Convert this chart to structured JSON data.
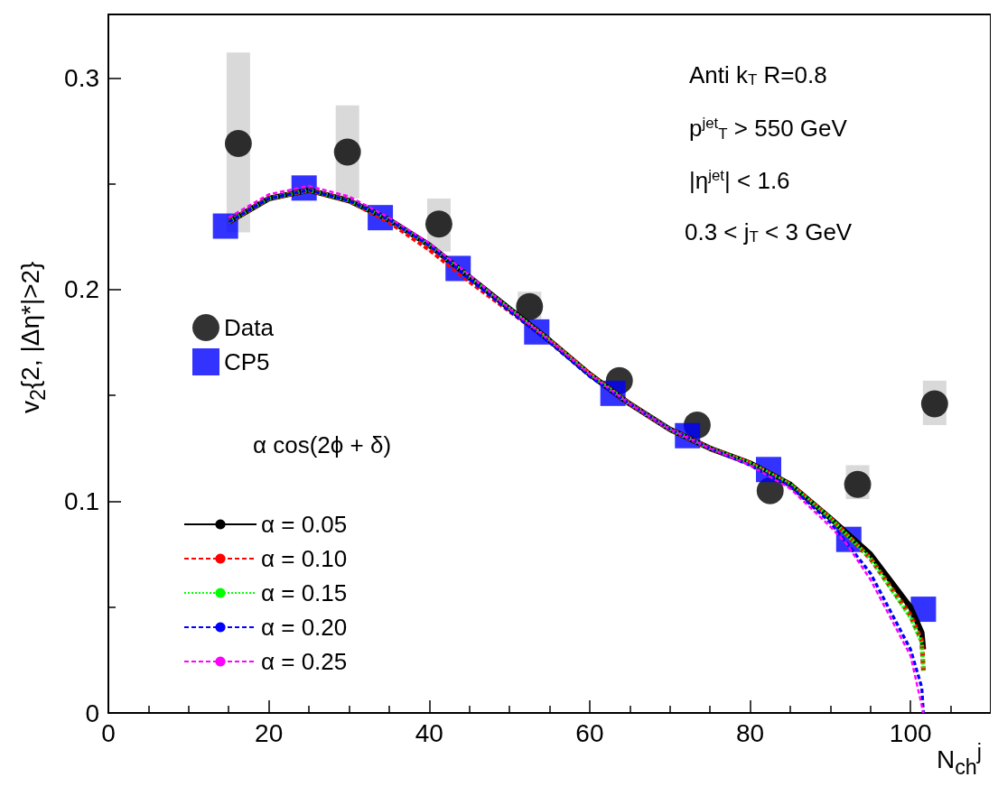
{
  "chart_data": {
    "type": "line",
    "xlabel": "N$_{ch}$$^{j}$",
    "ylabel": "v$_{2}${2, |Δη*|>2}",
    "legend_title": "α cos(2ϕ + δ)",
    "xlim": [
      0,
      110
    ],
    "xticks": [
      0,
      20,
      40,
      60,
      80,
      100
    ],
    "ylim": [
      0,
      0.33
    ],
    "yticks": [
      0,
      0.1,
      0.2,
      0.3
    ],
    "grid": false,
    "legend": "left",
    "annotations": [
      "Anti k$_{T}$ R=0.8",
      "p$^{jet}$$_{T}$ > 550 GeV",
      "|η$^{jet}$| < 1.6",
      "0.3 < j$_{T}$ < 3 GeV"
    ],
    "series": [
      {
        "name": "Data",
        "type": "scatter",
        "marker": "circle",
        "color": "#000000",
        "x": [
          16.2,
          29.8,
          41.2,
          52.5,
          63.7,
          73.4,
          82.5,
          93.4,
          103
        ],
        "values": [
          0.269,
          0.265,
          0.231,
          0.192,
          0.157,
          0.136,
          0.105,
          0.108,
          0.146
        ],
        "errors": [
          [
            0.227,
            0.312
          ],
          [
            0.243,
            0.287
          ],
          [
            0.218,
            0.243
          ],
          [
            0.186,
            0.199
          ],
          null,
          null,
          null,
          [
            0.101,
            0.117
          ],
          [
            0.136,
            0.157
          ]
        ]
      },
      {
        "name": "CP5",
        "type": "scatter",
        "marker": "square",
        "color": "#0000ff",
        "x": [
          14.6,
          24.4,
          33.9,
          43.6,
          53.4,
          62.9,
          72.2,
          82.3,
          92.3,
          101.6
        ],
        "values": [
          0.23,
          0.248,
          0.234,
          0.21,
          0.18,
          0.151,
          0.131,
          0.115,
          0.082,
          0.049
        ]
      },
      {
        "name": "α = 0.05",
        "line_style": "solid",
        "color": "#000000",
        "x": [
          15,
          20,
          25,
          30,
          35,
          40,
          45,
          50,
          55,
          60,
          65,
          70,
          75,
          80,
          85,
          90,
          95,
          100,
          101.4,
          101.6
        ],
        "values": [
          0.232,
          0.243,
          0.247,
          0.242,
          0.233,
          0.221,
          0.206,
          0.191,
          0.176,
          0.16,
          0.146,
          0.134,
          0.125,
          0.118,
          0.108,
          0.092,
          0.075,
          0.05,
          0.038,
          0.03
        ]
      },
      {
        "name": "α = 0.10",
        "line_style": "dashed",
        "color": "#ff0000",
        "x": [
          15,
          20,
          25,
          30,
          35,
          40,
          45,
          50,
          55,
          60,
          65,
          70,
          75,
          80,
          85,
          90,
          95,
          100,
          101.4,
          101.6
        ],
        "values": [
          0.232,
          0.243,
          0.247,
          0.242,
          0.232,
          0.219,
          0.204,
          0.19,
          0.176,
          0.16,
          0.146,
          0.134,
          0.125,
          0.118,
          0.108,
          0.092,
          0.073,
          0.046,
          0.034,
          0.02
        ]
      },
      {
        "name": "α = 0.15",
        "line_style": "dotted",
        "color": "#00ff00",
        "x": [
          15,
          20,
          25,
          30,
          35,
          40,
          45,
          50,
          55,
          60,
          65,
          70,
          75,
          80,
          85,
          90,
          95,
          100,
          101.4,
          101.6
        ],
        "values": [
          0.232,
          0.243,
          0.247,
          0.242,
          0.233,
          0.221,
          0.206,
          0.191,
          0.176,
          0.16,
          0.146,
          0.134,
          0.125,
          0.118,
          0.108,
          0.092,
          0.073,
          0.045,
          0.033,
          0.02
        ]
      },
      {
        "name": "α = 0.20",
        "line_style": "dashed",
        "color": "#0000ff",
        "x": [
          15,
          20,
          25,
          30,
          35,
          40,
          45,
          50,
          55,
          60,
          65,
          70,
          75,
          80,
          85,
          90,
          95,
          100,
          101.4,
          101.6
        ],
        "values": [
          0.232,
          0.243,
          0.247,
          0.242,
          0.233,
          0.221,
          0.205,
          0.19,
          0.175,
          0.159,
          0.146,
          0.134,
          0.125,
          0.117,
          0.107,
          0.09,
          0.066,
          0.03,
          0.012,
          0.0
        ]
      },
      {
        "name": "α = 0.25",
        "line_style": "dashed",
        "color": "#ff00ff",
        "x": [
          15,
          20,
          25,
          30,
          35,
          40,
          45,
          50,
          55,
          60,
          65,
          70,
          75,
          80,
          85,
          90,
          92,
          95,
          100,
          101.6
        ],
        "values": [
          0.234,
          0.245,
          0.249,
          0.244,
          0.234,
          0.222,
          0.207,
          0.191,
          0.176,
          0.16,
          0.146,
          0.134,
          0.125,
          0.117,
          0.106,
          0.088,
          0.08,
          0.063,
          0.027,
          0.0
        ]
      }
    ]
  }
}
